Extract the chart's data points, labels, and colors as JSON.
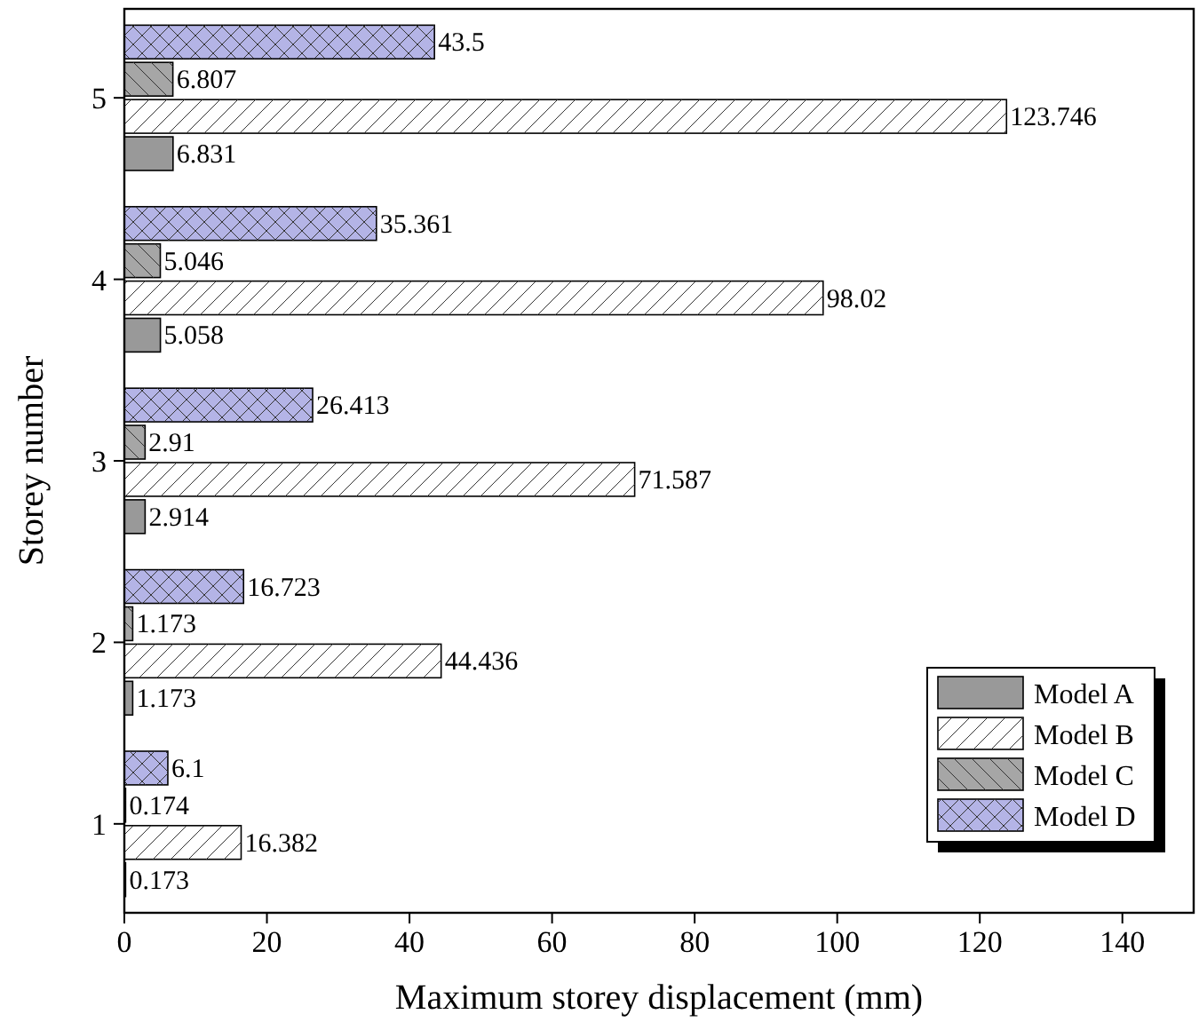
{
  "chart_data": {
    "type": "bar",
    "orientation": "horizontal",
    "xlabel": "Maximum storey displacement (mm)",
    "ylabel": "Storey number",
    "categories": [
      "5",
      "4",
      "3",
      "2",
      "1"
    ],
    "series": [
      {
        "name": "Model D",
        "color": "#b4b4e6",
        "values": [
          43.5,
          35.361,
          26.413,
          16.723,
          6.1
        ]
      },
      {
        "name": "Model C",
        "color": "#a6a6a6",
        "values": [
          6.807,
          5.046,
          2.91,
          1.173,
          0.174
        ]
      },
      {
        "name": "Model B",
        "color": "#ffffff",
        "values": [
          123.746,
          98.02,
          71.587,
          44.436,
          16.382
        ]
      },
      {
        "name": "Model A",
        "color": "#999999",
        "values": [
          6.831,
          5.058,
          2.914,
          1.173,
          0.173
        ]
      }
    ],
    "xlim": [
      0,
      150
    ],
    "xticks": [
      0,
      20,
      40,
      60,
      80,
      100,
      120,
      140
    ],
    "data_labels": true,
    "legend": "bottom right",
    "grid": false
  }
}
